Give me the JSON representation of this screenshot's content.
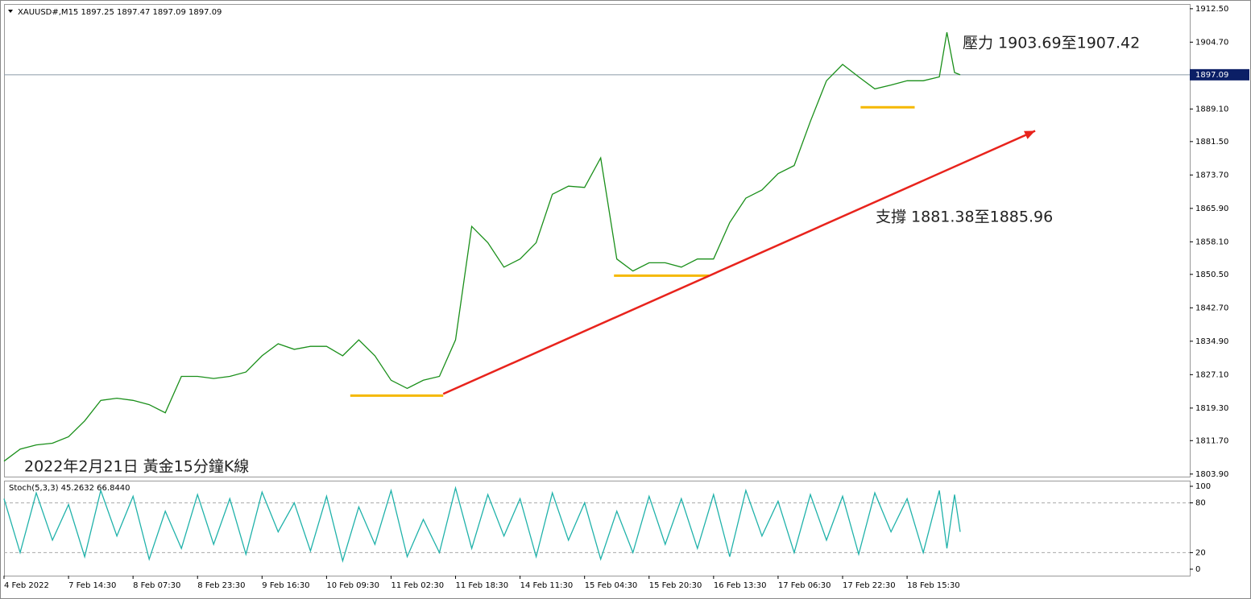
{
  "chart_data": [
    {
      "type": "line",
      "title": "XAUUSD#,M15 1897.25 1897.47 1897.09 1897.09",
      "annotations": [
        "壓力 1903.69至1907.42",
        "支撐 1881.38至1885.96",
        "2022年2月21日 黃金15分鐘K線"
      ],
      "x": [
        0,
        17,
        34,
        51,
        68,
        85,
        102,
        119,
        136,
        153,
        170,
        187,
        204,
        221,
        238,
        255,
        272,
        289,
        306,
        323,
        340,
        357,
        374,
        391,
        408,
        425,
        442,
        459,
        476,
        493,
        510,
        527,
        544,
        561,
        578,
        595,
        612,
        629,
        646,
        663,
        680,
        697,
        714,
        731,
        748,
        765,
        782,
        799,
        816,
        833,
        850,
        867,
        884,
        901,
        918,
        935,
        952,
        969,
        986,
        994,
        1002,
        1008
      ],
      "values": [
        1806.9,
        1809.7,
        1810.7,
        1811.1,
        1812.6,
        1816.3,
        1821.1,
        1821.6,
        1821.1,
        1820.1,
        1818.2,
        1826.7,
        1826.7,
        1826.2,
        1826.7,
        1827.7,
        1831.5,
        1834.3,
        1833.0,
        1833.7,
        1833.7,
        1831.5,
        1835.2,
        1831.5,
        1825.8,
        1823.9,
        1825.8,
        1826.7,
        1835.2,
        1861.7,
        1857.9,
        1852.2,
        1854.1,
        1857.9,
        1869.2,
        1871.1,
        1870.8,
        1877.7,
        1854.1,
        1851.3,
        1853.2,
        1853.2,
        1852.2,
        1854.1,
        1854.1,
        1862.6,
        1868.3,
        1870.2,
        1874.0,
        1875.9,
        1886.2,
        1895.7,
        1899.5,
        1896.6,
        1893.8,
        1894.7,
        1895.7,
        1895.7,
        1896.6,
        1907.0,
        1897.6,
        1897.09
      ],
      "color": "#1a8f1a",
      "xlim": [
        0,
        1250
      ],
      "xticks": [
        {
          "value": 0,
          "label": "4 Feb 2022"
        },
        {
          "value": 68,
          "label": "7 Feb 14:30"
        },
        {
          "value": 136,
          "label": "8 Feb 07:30"
        },
        {
          "value": 204,
          "label": "8 Feb 23:30"
        },
        {
          "value": 272,
          "label": "9 Feb 16:30"
        },
        {
          "value": 340,
          "label": "10 Feb 09:30"
        },
        {
          "value": 408,
          "label": "11 Feb 02:30"
        },
        {
          "value": 476,
          "label": "11 Feb 18:30"
        },
        {
          "value": 544,
          "label": "14 Feb 11:30"
        },
        {
          "value": 612,
          "label": "15 Feb 04:30"
        },
        {
          "value": 680,
          "label": "15 Feb 20:30"
        },
        {
          "value": 748,
          "label": "16 Feb 13:30"
        },
        {
          "value": 816,
          "label": "17 Feb 06:30"
        },
        {
          "value": 884,
          "label": "17 Feb 22:30"
        },
        {
          "value": 952,
          "label": "18 Feb 15:30"
        }
      ],
      "ylim": [
        1803.3,
        1913.6
      ],
      "yticks": [
        {
          "value": 1912.5,
          "label": "1912.50"
        },
        {
          "value": 1904.7,
          "label": "1904.70"
        },
        {
          "value": 1889.1,
          "label": "1889.10"
        },
        {
          "value": 1881.5,
          "label": "1881.50"
        },
        {
          "value": 1873.7,
          "label": "1873.70"
        },
        {
          "value": 1865.9,
          "label": "1865.90"
        },
        {
          "value": 1858.1,
          "label": "1858.10"
        },
        {
          "value": 1850.5,
          "label": "1850.50"
        },
        {
          "value": 1842.7,
          "label": "1842.70"
        },
        {
          "value": 1834.9,
          "label": "1834.90"
        },
        {
          "value": 1827.1,
          "label": "1827.10"
        },
        {
          "value": 1819.3,
          "label": "1819.30"
        },
        {
          "value": 1811.7,
          "label": "1811.70"
        },
        {
          "value": 1803.9,
          "label": "1803.90"
        }
      ],
      "last_price": {
        "value": 1897.09,
        "label": "1897.09"
      },
      "trend_line": {
        "x": [
          463,
          1087
        ],
        "y": [
          1822.6,
          1884.0
        ],
        "color": "#e8231c"
      },
      "levels": [
        {
          "x": [
            365,
            463
          ],
          "y": 1822.2
        },
        {
          "x": [
            643,
            743
          ],
          "y": 1850.2
        },
        {
          "x": [
            903,
            960
          ],
          "y": 1889.5
        }
      ],
      "level_color": "#f5b800"
    },
    {
      "type": "line",
      "title": "Stoch(5,3,3) 45.2632 66.8440",
      "x": [
        0,
        17,
        34,
        51,
        68,
        85,
        102,
        119,
        136,
        153,
        170,
        187,
        204,
        221,
        238,
        255,
        272,
        289,
        306,
        323,
        340,
        357,
        374,
        391,
        408,
        425,
        442,
        459,
        476,
        493,
        510,
        527,
        544,
        561,
        578,
        595,
        612,
        629,
        646,
        663,
        680,
        697,
        714,
        731,
        748,
        765,
        782,
        799,
        816,
        833,
        850,
        867,
        884,
        901,
        918,
        935,
        952,
        969,
        986,
        994,
        1002,
        1008
      ],
      "values": [
        85,
        20,
        92,
        35,
        78,
        15,
        95,
        40,
        88,
        12,
        70,
        25,
        90,
        30,
        85,
        18,
        93,
        45,
        80,
        22,
        88,
        10,
        75,
        30,
        95,
        15,
        60,
        20,
        98,
        25,
        90,
        40,
        85,
        15,
        92,
        35,
        80,
        12,
        70,
        20,
        88,
        30,
        85,
        25,
        90,
        15,
        95,
        40,
        82,
        20,
        90,
        35,
        88,
        18,
        92,
        45,
        85,
        20,
        95,
        25,
        90,
        45
      ],
      "color": "#20b2aa",
      "xlim": [
        0,
        1250
      ],
      "ylim": [
        -7.8,
        106.8
      ],
      "yticks": [
        100,
        80,
        20,
        0
      ],
      "dashed_levels": [
        80,
        20
      ]
    }
  ]
}
